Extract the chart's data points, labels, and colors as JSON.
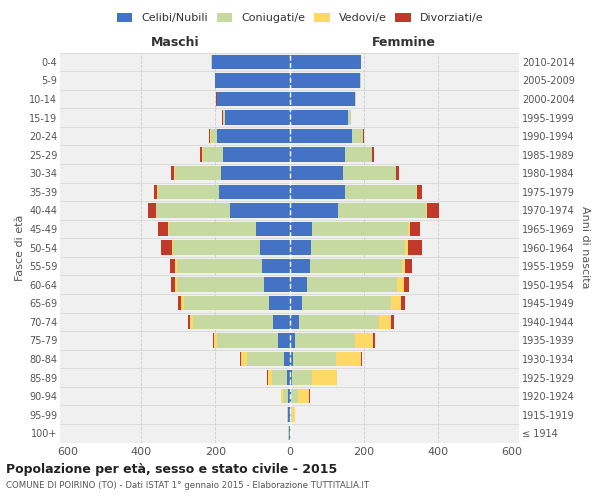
{
  "age_groups": [
    "100+",
    "95-99",
    "90-94",
    "85-89",
    "80-84",
    "75-79",
    "70-74",
    "65-69",
    "60-64",
    "55-59",
    "50-54",
    "45-49",
    "40-44",
    "35-39",
    "30-34",
    "25-29",
    "20-24",
    "15-19",
    "10-14",
    "5-9",
    "0-4"
  ],
  "birth_years": [
    "≤ 1914",
    "1915-1919",
    "1920-1924",
    "1925-1929",
    "1930-1934",
    "1935-1939",
    "1940-1944",
    "1945-1949",
    "1950-1954",
    "1955-1959",
    "1960-1964",
    "1965-1969",
    "1970-1974",
    "1975-1979",
    "1980-1984",
    "1985-1989",
    "1990-1994",
    "1995-1999",
    "2000-2004",
    "2005-2009",
    "2010-2014"
  ],
  "males": {
    "celibe": [
      2,
      3,
      5,
      8,
      15,
      30,
      45,
      55,
      70,
      75,
      80,
      90,
      160,
      190,
      185,
      180,
      195,
      175,
      195,
      200,
      210
    ],
    "coniugato": [
      1,
      3,
      12,
      38,
      100,
      165,
      215,
      230,
      235,
      230,
      235,
      235,
      200,
      165,
      125,
      55,
      18,
      5,
      2,
      1,
      1
    ],
    "vedovo": [
      0,
      1,
      5,
      12,
      15,
      8,
      10,
      8,
      5,
      4,
      3,
      3,
      2,
      2,
      1,
      1,
      1,
      0,
      0,
      0,
      0
    ],
    "divorziato": [
      0,
      0,
      1,
      2,
      3,
      3,
      5,
      8,
      10,
      15,
      30,
      28,
      20,
      10,
      8,
      5,
      3,
      2,
      1,
      0,
      0
    ]
  },
  "females": {
    "nubile": [
      2,
      2,
      4,
      7,
      10,
      15,
      25,
      35,
      48,
      55,
      58,
      62,
      130,
      150,
      145,
      150,
      170,
      158,
      178,
      190,
      192
    ],
    "coniugata": [
      1,
      4,
      18,
      55,
      115,
      162,
      218,
      238,
      242,
      248,
      255,
      258,
      238,
      192,
      142,
      72,
      28,
      7,
      3,
      2,
      1
    ],
    "vedova": [
      1,
      8,
      32,
      65,
      68,
      48,
      32,
      28,
      18,
      10,
      7,
      5,
      4,
      3,
      2,
      1,
      1,
      0,
      0,
      0,
      0
    ],
    "divorziata": [
      0,
      0,
      1,
      2,
      3,
      5,
      8,
      10,
      14,
      18,
      38,
      28,
      33,
      14,
      7,
      4,
      2,
      1,
      0,
      0,
      0
    ]
  },
  "colors": {
    "celibe": "#4472C4",
    "coniugato": "#C5D9A0",
    "vedovo": "#FFD966",
    "divorziato": "#C0392B"
  },
  "xlim": 620,
  "title": "Popolazione per età, sesso e stato civile - 2015",
  "subtitle": "COMUNE DI POIRINO (TO) - Dati ISTAT 1° gennaio 2015 - Elaborazione TUTTITALIA.IT",
  "ylabel_left": "Fasce di età",
  "ylabel_right": "Anni di nascita",
  "xlabel_left": "Maschi",
  "xlabel_right": "Femmine",
  "background_color": "#FFFFFF",
  "axes_bg": "#F0F0F0",
  "grid_color": "#CCCCCC"
}
